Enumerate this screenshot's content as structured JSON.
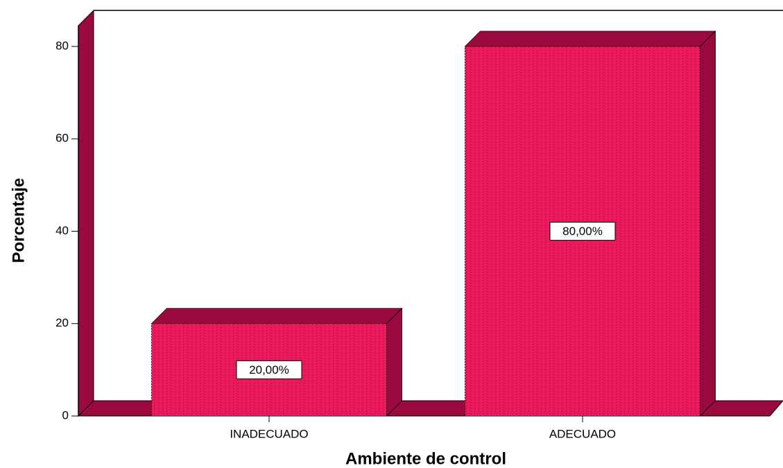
{
  "chart_data": {
    "type": "bar3d",
    "x_label": "Ambiente de control",
    "y_label": "Porcentaje",
    "categories": [
      "INADECUADO",
      "ADECUADO"
    ],
    "values": [
      20,
      80
    ],
    "value_labels": [
      "20,00%",
      "80,00%"
    ],
    "color": "#ea1a5c",
    "side_color": "#9b0a3e",
    "ylim": [
      0,
      84.5
    ],
    "yticks": [
      0,
      20,
      40,
      60,
      80
    ]
  }
}
